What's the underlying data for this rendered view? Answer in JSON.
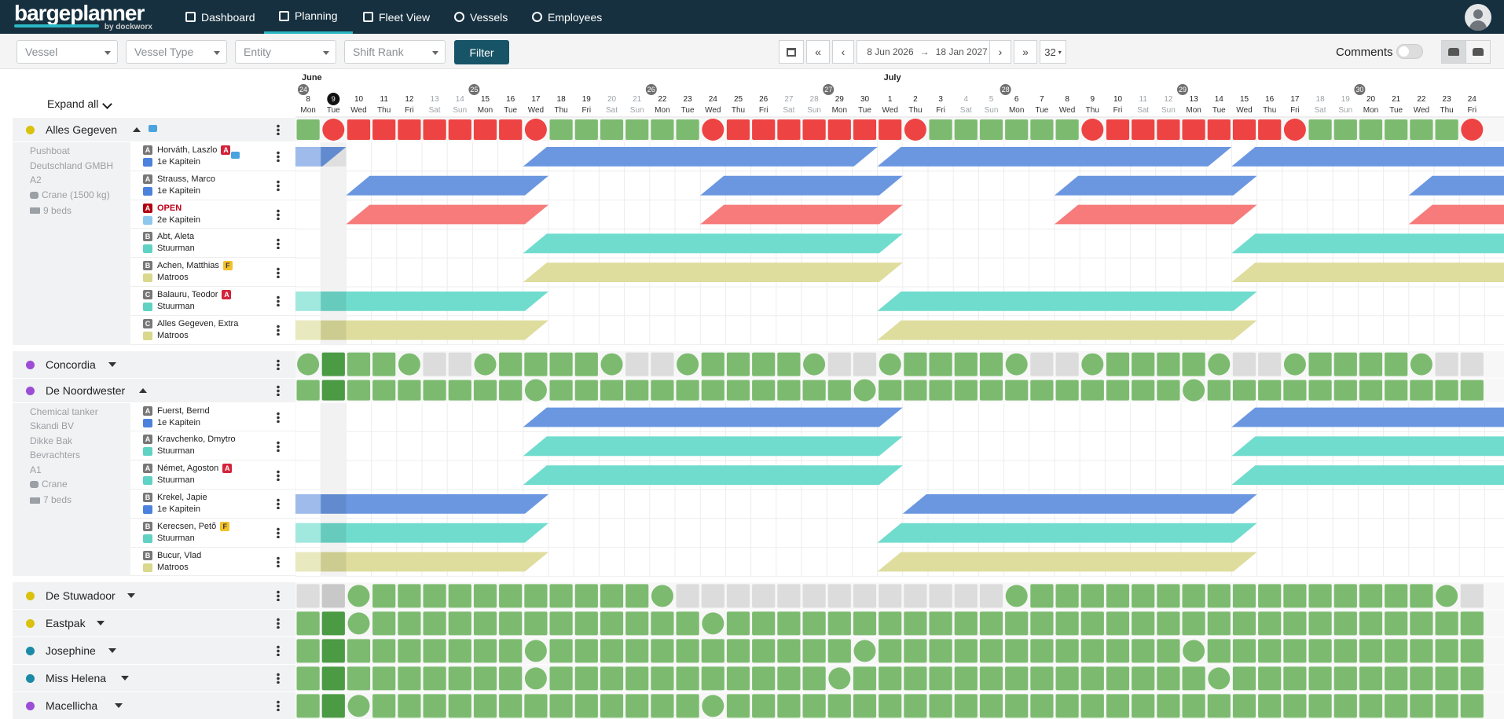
{
  "app": {
    "brand": "bargeplanner",
    "brand_sub": "by dockworx"
  },
  "nav": {
    "items": [
      {
        "label": "Dashboard",
        "icon": "dashboard-grid-icon"
      },
      {
        "label": "Planning",
        "icon": "calendar-icon",
        "active": true
      },
      {
        "label": "Fleet View",
        "icon": "fleet-view-icon"
      },
      {
        "label": "Vessels",
        "icon": "vessel-wheel-icon"
      },
      {
        "label": "Employees",
        "icon": "employees-icon"
      }
    ]
  },
  "filters": {
    "vessel": "Vessel",
    "vessel_type": "Vessel Type",
    "entity": "Entity",
    "shift_rank": "Shift Rank",
    "filter_button": "Filter"
  },
  "datenav": {
    "start": "8 Jun 2026",
    "end": "18 Jan 2027",
    "zoom": "32"
  },
  "comments": {
    "label": "Comments",
    "enabled": false
  },
  "timeline": {
    "expand_all": "Expand all",
    "months": [
      {
        "label": "June",
        "day_index": 0
      },
      {
        "label": "July",
        "day_index": 23
      }
    ],
    "weeks": [
      {
        "label": "24",
        "day_index": 0
      },
      {
        "label": "25",
        "day_index": 7
      },
      {
        "label": "26",
        "day_index": 14
      },
      {
        "label": "27",
        "day_index": 21
      },
      {
        "label": "28",
        "day_index": 28
      },
      {
        "label": "29",
        "day_index": 35
      },
      {
        "label": "30",
        "day_index": 42
      }
    ],
    "today_index": 1,
    "days": [
      {
        "n": "8",
        "w": "Mon"
      },
      {
        "n": "9",
        "w": "Tue"
      },
      {
        "n": "10",
        "w": "Wed"
      },
      {
        "n": "11",
        "w": "Thu"
      },
      {
        "n": "12",
        "w": "Fri"
      },
      {
        "n": "13",
        "w": "Sat",
        "we": true
      },
      {
        "n": "14",
        "w": "Sun",
        "we": true
      },
      {
        "n": "15",
        "w": "Mon"
      },
      {
        "n": "16",
        "w": "Tue"
      },
      {
        "n": "17",
        "w": "Wed"
      },
      {
        "n": "18",
        "w": "Thu"
      },
      {
        "n": "19",
        "w": "Fri"
      },
      {
        "n": "20",
        "w": "Sat",
        "we": true
      },
      {
        "n": "21",
        "w": "Sun",
        "we": true
      },
      {
        "n": "22",
        "w": "Mon"
      },
      {
        "n": "23",
        "w": "Tue"
      },
      {
        "n": "24",
        "w": "Wed"
      },
      {
        "n": "25",
        "w": "Thu"
      },
      {
        "n": "26",
        "w": "Fri"
      },
      {
        "n": "27",
        "w": "Sat",
        "we": true
      },
      {
        "n": "28",
        "w": "Sun",
        "we": true
      },
      {
        "n": "29",
        "w": "Mon"
      },
      {
        "n": "30",
        "w": "Tue"
      },
      {
        "n": "1",
        "w": "Wed"
      },
      {
        "n": "2",
        "w": "Thu"
      },
      {
        "n": "3",
        "w": "Fri"
      },
      {
        "n": "4",
        "w": "Sat",
        "we": true
      },
      {
        "n": "5",
        "w": "Sun",
        "we": true
      },
      {
        "n": "6",
        "w": "Mon"
      },
      {
        "n": "7",
        "w": "Tue"
      },
      {
        "n": "8",
        "w": "Wed"
      },
      {
        "n": "9",
        "w": "Thu"
      },
      {
        "n": "10",
        "w": "Fri"
      },
      {
        "n": "11",
        "w": "Sat",
        "we": true
      },
      {
        "n": "12",
        "w": "Sun",
        "we": true
      },
      {
        "n": "13",
        "w": "Mon"
      },
      {
        "n": "14",
        "w": "Tue"
      },
      {
        "n": "15",
        "w": "Wed"
      },
      {
        "n": "16",
        "w": "Thu"
      },
      {
        "n": "17",
        "w": "Fri"
      },
      {
        "n": "18",
        "w": "Sat",
        "we": true
      },
      {
        "n": "19",
        "w": "Sun",
        "we": true
      },
      {
        "n": "20",
        "w": "Mon"
      },
      {
        "n": "21",
        "w": "Tue"
      },
      {
        "n": "22",
        "w": "Wed"
      },
      {
        "n": "23",
        "w": "Thu"
      },
      {
        "n": "24",
        "w": "Fri"
      }
    ]
  },
  "colors": {
    "green": "#7cbb6f",
    "red": "#ee4343",
    "grey": "#dcdcdc",
    "blue": "#6a97e0",
    "red_light": "#f77b7b",
    "teal": "#6fdcce",
    "khaki": "#dedd9d"
  },
  "vessels": [
    {
      "name": "Alles Gegeven",
      "dot": "#d9c10e",
      "expanded": true,
      "comment": true,
      "status": "gcRRRRRRRcggggggcRRRRRRRcggggggcRRRRRRRcggggggcRRR",
      "info": [
        "Pushboat",
        "Deutschland GMBH",
        "A2"
      ],
      "crane": "Crane (1500 kg)",
      "beds": "9 beds",
      "crew": [
        {
          "rank": "A",
          "name": "Horváth, Laszlo",
          "badge": "A",
          "role": "1e Kapitein",
          "role_color": "#4c82dc",
          "comment": true,
          "bars": [
            {
              "s": 0,
              "e": 2,
              "c": "blue"
            },
            {
              "s": 9,
              "e": 23,
              "c": "blue"
            },
            {
              "s": 23,
              "e": 37,
              "c": "blue"
            },
            {
              "s": 37,
              "e": 51,
              "c": "blue"
            }
          ]
        },
        {
          "rank": "A",
          "name": "Strauss, Marco",
          "role": "1e Kapitein",
          "role_color": "#4c82dc",
          "bars": [
            {
              "s": 2,
              "e": 10,
              "c": "blue"
            },
            {
              "s": 16,
              "e": 24,
              "c": "blue"
            },
            {
              "s": 30,
              "e": 38,
              "c": "blue"
            },
            {
              "s": 44,
              "e": 51,
              "c": "blue"
            }
          ]
        },
        {
          "rank": "A",
          "name": "OPEN",
          "open": true,
          "role": "2e Kapitein",
          "role_color": "#8ec8ee",
          "bars": [
            {
              "s": 2,
              "e": 10,
              "c": "red_light"
            },
            {
              "s": 16,
              "e": 24,
              "c": "red_light"
            },
            {
              "s": 30,
              "e": 38,
              "c": "red_light"
            },
            {
              "s": 44,
              "e": 51,
              "c": "red_light"
            }
          ]
        },
        {
          "rank": "B",
          "name": "Abt, Aleta",
          "role": "Stuurman",
          "role_color": "#5fd2c4",
          "bars": [
            {
              "s": 9,
              "e": 24,
              "c": "teal"
            },
            {
              "s": 37,
              "e": 51,
              "c": "teal"
            }
          ]
        },
        {
          "rank": "B",
          "name": "Achen, Matthias",
          "badge": "F",
          "role": "Matroos",
          "role_color": "#d9d88c",
          "bars": [
            {
              "s": 9,
              "e": 24,
              "c": "khaki"
            },
            {
              "s": 37,
              "e": 51,
              "c": "khaki"
            }
          ]
        },
        {
          "rank": "C",
          "name": "Balauru, Teodor",
          "badge": "A",
          "role": "Stuurman",
          "role_color": "#5fd2c4",
          "bars": [
            {
              "s": 0,
              "e": 10,
              "c": "teal"
            },
            {
              "s": 23,
              "e": 38,
              "c": "teal"
            }
          ]
        },
        {
          "rank": "C",
          "name": "Alles Gegeven, Extra",
          "role": "Matroos",
          "role_color": "#d9d88c",
          "bars": [
            {
              "s": 0,
              "e": 10,
              "c": "khaki"
            },
            {
              "s": 23,
              "e": 38,
              "c": "khaki"
            }
          ]
        }
      ]
    },
    {
      "name": "Concordia",
      "dot": "#9b4dd6",
      "expanded": false,
      "status": "cGggcxxcggggcxxcggggcxxcggggcxxcggggcxxcggggcxxcgg"
    },
    {
      "name": "De Noordwester",
      "dot": "#9b4dd6",
      "expanded": true,
      "status": "gGgggggggcggggggggggggcggggggggggggcggggggggggggcg",
      "info": [
        "Chemical tanker",
        "Skandi BV",
        "Dikke Bak",
        "Bevrachters",
        "A1"
      ],
      "crane": "Crane",
      "beds": "7 beds",
      "crew": [
        {
          "rank": "A",
          "name": "Fuerst, Bernd",
          "role": "1e Kapitein",
          "role_color": "#4c82dc",
          "bars": [
            {
              "s": 9,
              "e": 24,
              "c": "blue"
            },
            {
              "s": 37,
              "e": 51,
              "c": "blue"
            }
          ]
        },
        {
          "rank": "A",
          "name": "Kravchenko, Dmytro",
          "role": "Stuurman",
          "role_color": "#5fd2c4",
          "bars": [
            {
              "s": 9,
              "e": 24,
              "c": "teal"
            },
            {
              "s": 37,
              "e": 51,
              "c": "teal"
            }
          ]
        },
        {
          "rank": "A",
          "name": "Német, Agoston",
          "badge": "A",
          "role": "Stuurman",
          "role_color": "#5fd2c4",
          "bars": [
            {
              "s": 9,
              "e": 24,
              "c": "teal"
            },
            {
              "s": 37,
              "e": 51,
              "c": "teal"
            }
          ]
        },
        {
          "rank": "B",
          "name": "Krekel, Japie",
          "role": "1e Kapitein",
          "role_color": "#4c82dc",
          "bars": [
            {
              "s": 0,
              "e": 10,
              "c": "blue"
            },
            {
              "s": 24,
              "e": 38,
              "c": "blue"
            }
          ]
        },
        {
          "rank": "B",
          "name": "Kerecsen, Petõ",
          "badge": "F",
          "role": "Stuurman",
          "role_color": "#5fd2c4",
          "bars": [
            {
              "s": 0,
              "e": 10,
              "c": "teal"
            },
            {
              "s": 23,
              "e": 38,
              "c": "teal"
            }
          ]
        },
        {
          "rank": "B",
          "name": "Bucur, Vlad",
          "role": "Matroos",
          "role_color": "#d9d88c",
          "bars": [
            {
              "s": 0,
              "e": 10,
              "c": "khaki"
            },
            {
              "s": 23,
              "e": 38,
              "c": "khaki"
            }
          ]
        }
      ]
    },
    {
      "name": "De Stuwadoor",
      "dot": "#d9c10e",
      "expanded": false,
      "status": "xXcgggggggggggcxxxxxxxxxxxxxcggggggggggggggggcxxx"
    },
    {
      "name": "Eastpak",
      "dot": "#d9c10e",
      "expanded": false,
      "status": "gGcgggggggggggggcggggggggggggggggggggggggggggggggg"
    },
    {
      "name": "Josephine",
      "dot": "#1a8aa8",
      "expanded": false,
      "status": "gGgggggggcggggggggggggcggggggggggggcggggggggggggcg"
    },
    {
      "name": "Miss Helena",
      "dot": "#1a8aa8",
      "expanded": false,
      "status": "gGgggggggcgggggggggggcggggggggggggggcggggggggggggg"
    },
    {
      "name": "Macellicha",
      "dot": "#9b4dd6",
      "expanded": false,
      "status": "gGcgggggggggggggcggggggggggggggggggggggggggggggggg"
    }
  ]
}
